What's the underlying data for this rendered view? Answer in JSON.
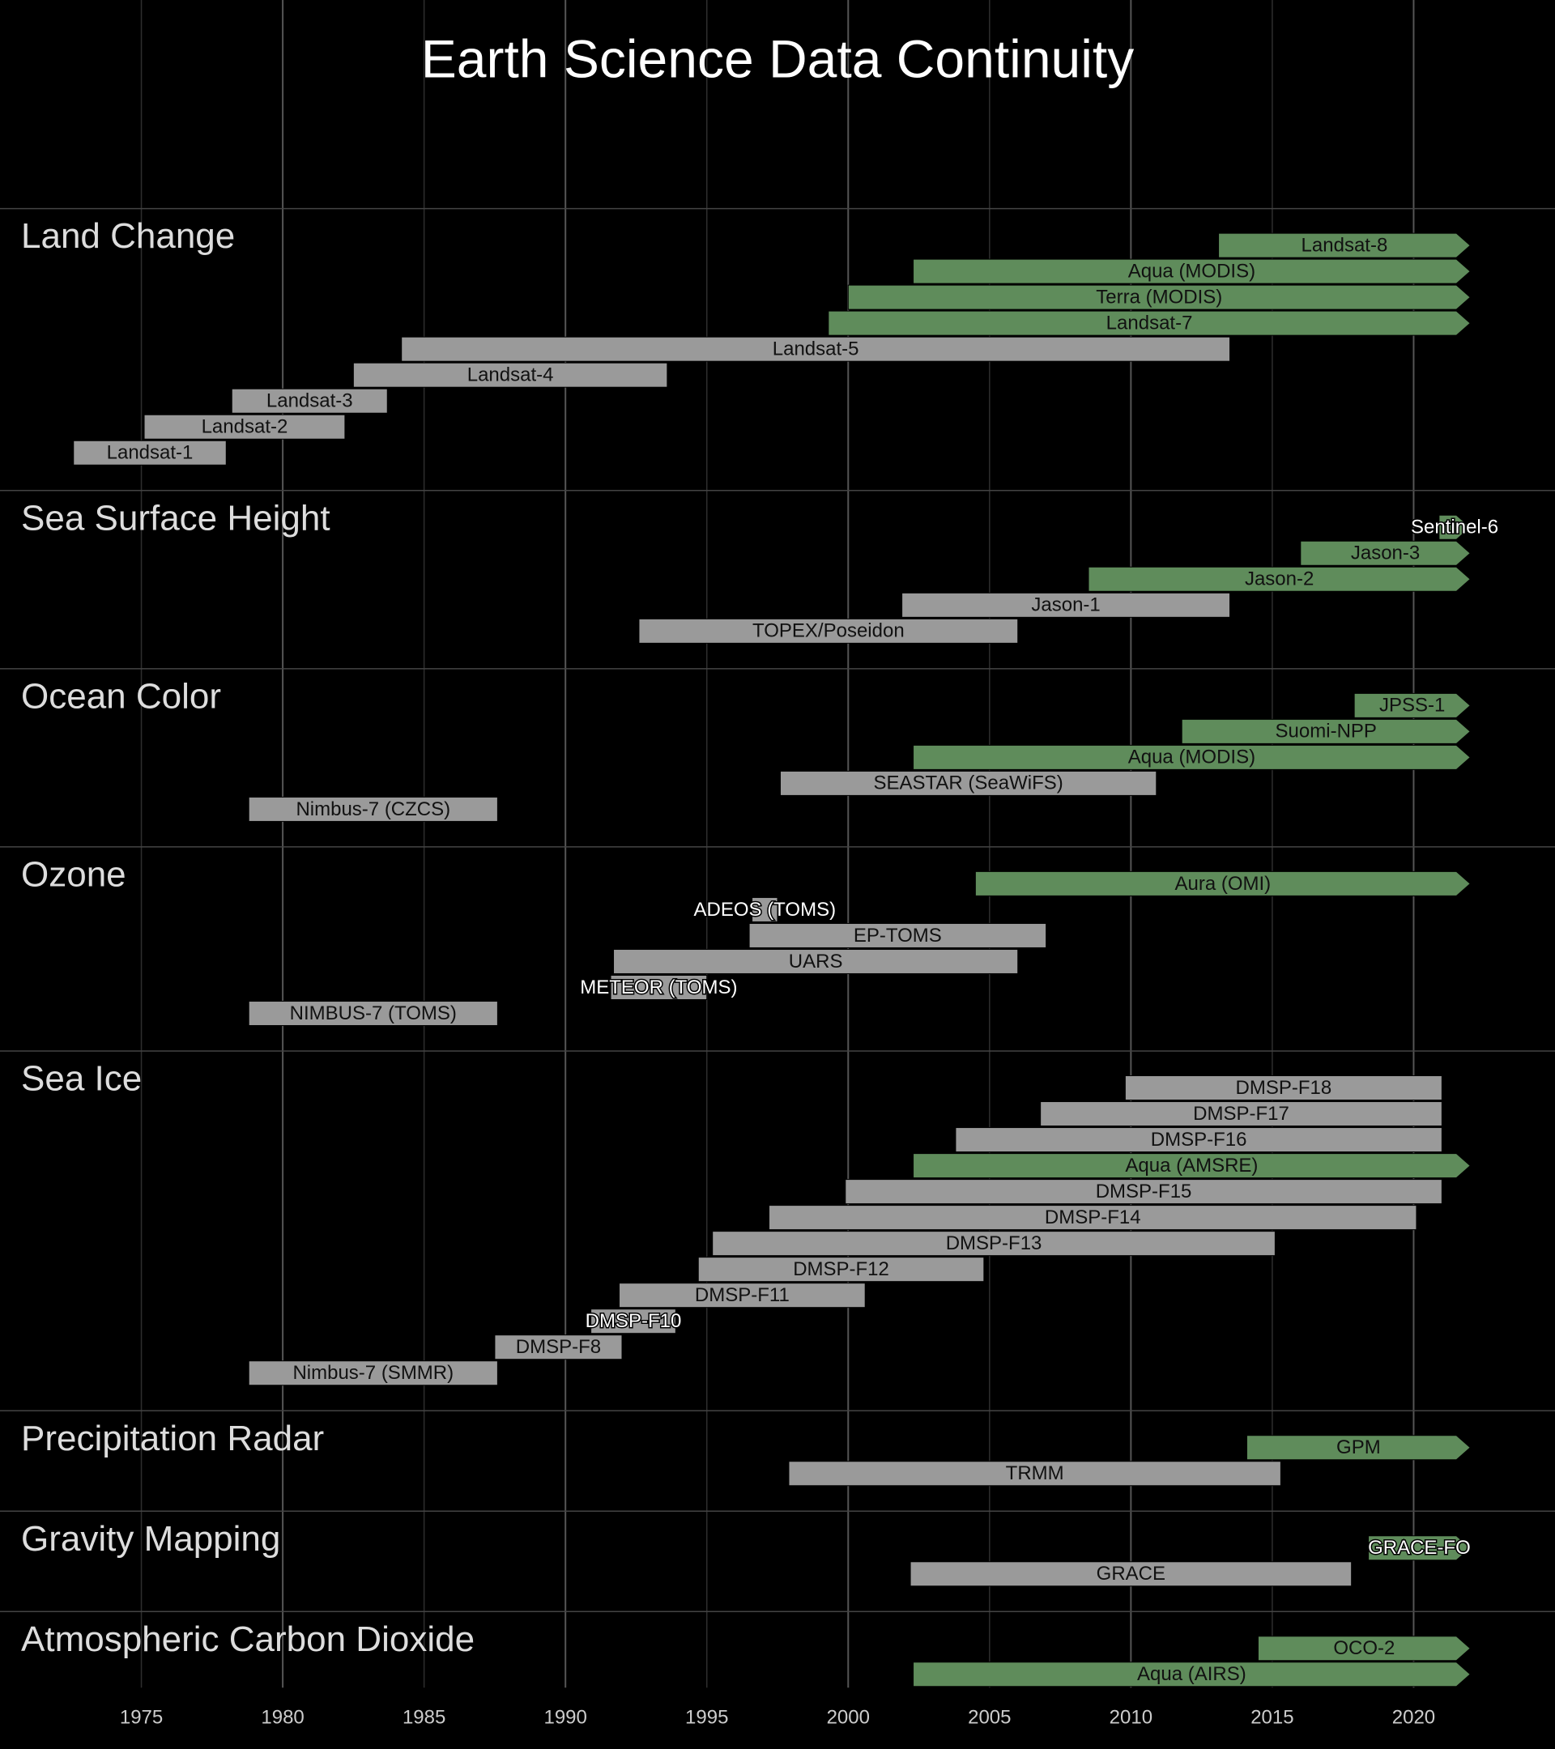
{
  "chart_data": {
    "type": "timeline",
    "title": "Earth Science Data Continuity",
    "xlim": [
      1970,
      2025
    ],
    "xticks": [
      1975,
      1980,
      1985,
      1990,
      1995,
      2000,
      2005,
      2010,
      2015,
      2020
    ],
    "grid": true,
    "groups": [
      {
        "name": "Land Change",
        "items": [
          {
            "name": "Landsat-8",
            "start": 2013.1,
            "end": 2022,
            "ongoing": true,
            "color": "#5f8c5b"
          },
          {
            "name": "Aqua (MODIS)",
            "start": 2002.3,
            "end": 2022,
            "ongoing": true,
            "color": "#5f8c5b"
          },
          {
            "name": "Terra (MODIS)",
            "start": 2000.0,
            "end": 2022,
            "ongoing": true,
            "color": "#5f8c5b"
          },
          {
            "name": "Landsat-7",
            "start": 1999.3,
            "end": 2022,
            "ongoing": true,
            "color": "#5f8c5b"
          },
          {
            "name": "Landsat-5",
            "start": 1984.2,
            "end": 2013.5,
            "ongoing": false,
            "color": "#9a9a9a"
          },
          {
            "name": "Landsat-4",
            "start": 1982.5,
            "end": 1993.6,
            "ongoing": false,
            "color": "#9a9a9a"
          },
          {
            "name": "Landsat-3",
            "start": 1978.2,
            "end": 1983.7,
            "ongoing": false,
            "color": "#9a9a9a"
          },
          {
            "name": "Landsat-2",
            "start": 1975.1,
            "end": 1982.2,
            "ongoing": false,
            "color": "#9a9a9a"
          },
          {
            "name": "Landsat-1",
            "start": 1972.6,
            "end": 1978.0,
            "ongoing": false,
            "color": "#9a9a9a"
          }
        ]
      },
      {
        "name": "Sea Surface Height",
        "items": [
          {
            "name": "Sentinel-6",
            "start": 2020.9,
            "end": 2022,
            "ongoing": true,
            "color": "#5f8c5b"
          },
          {
            "name": "Jason-3",
            "start": 2016.0,
            "end": 2022,
            "ongoing": true,
            "color": "#5f8c5b"
          },
          {
            "name": "Jason-2",
            "start": 2008.5,
            "end": 2022,
            "ongoing": true,
            "color": "#5f8c5b"
          },
          {
            "name": "Jason-1",
            "start": 2001.9,
            "end": 2013.5,
            "ongoing": false,
            "color": "#9a9a9a"
          },
          {
            "name": "TOPEX/Poseidon",
            "start": 1992.6,
            "end": 2006.0,
            "ongoing": false,
            "color": "#9a9a9a"
          }
        ]
      },
      {
        "name": "Ocean Color",
        "items": [
          {
            "name": "JPSS-1",
            "start": 2017.9,
            "end": 2022,
            "ongoing": true,
            "color": "#5f8c5b"
          },
          {
            "name": "Suomi-NPP",
            "start": 2011.8,
            "end": 2022,
            "ongoing": true,
            "color": "#5f8c5b"
          },
          {
            "name": "Aqua (MODIS)",
            "start": 2002.3,
            "end": 2022,
            "ongoing": true,
            "color": "#5f8c5b"
          },
          {
            "name": "SEASTAR (SeaWiFS)",
            "start": 1997.6,
            "end": 2010.9,
            "ongoing": false,
            "color": "#9a9a9a"
          },
          {
            "name": "Nimbus-7 (CZCS)",
            "start": 1978.8,
            "end": 1987.6,
            "ongoing": false,
            "color": "#9a9a9a"
          }
        ]
      },
      {
        "name": "Ozone",
        "items": [
          {
            "name": "Aura (OMI)",
            "start": 2004.5,
            "end": 2022,
            "ongoing": true,
            "color": "#5f8c5b"
          },
          {
            "name": "ADEOS (TOMS)",
            "start": 1996.6,
            "end": 1997.5,
            "ongoing": false,
            "color": "#9a9a9a"
          },
          {
            "name": "EP-TOMS",
            "start": 1996.5,
            "end": 2007.0,
            "ongoing": false,
            "color": "#9a9a9a"
          },
          {
            "name": "UARS",
            "start": 1991.7,
            "end": 2006.0,
            "ongoing": false,
            "color": "#9a9a9a"
          },
          {
            "name": "METEOR (TOMS)",
            "start": 1991.6,
            "end": 1995.0,
            "ongoing": false,
            "color": "#9a9a9a"
          },
          {
            "name": "NIMBUS-7 (TOMS)",
            "start": 1978.8,
            "end": 1987.6,
            "ongoing": false,
            "color": "#9a9a9a"
          }
        ]
      },
      {
        "name": "Sea Ice",
        "items": [
          {
            "name": "DMSP-F18",
            "start": 2009.8,
            "end": 2021.0,
            "ongoing": false,
            "color": "#9a9a9a"
          },
          {
            "name": "DMSP-F17",
            "start": 2006.8,
            "end": 2021.0,
            "ongoing": false,
            "color": "#9a9a9a"
          },
          {
            "name": "DMSP-F16",
            "start": 2003.8,
            "end": 2021.0,
            "ongoing": false,
            "color": "#9a9a9a"
          },
          {
            "name": "Aqua (AMSRE)",
            "start": 2002.3,
            "end": 2022,
            "ongoing": true,
            "color": "#5f8c5b"
          },
          {
            "name": "DMSP-F15",
            "start": 1999.9,
            "end": 2021.0,
            "ongoing": false,
            "color": "#9a9a9a"
          },
          {
            "name": "DMSP-F14",
            "start": 1997.2,
            "end": 2020.1,
            "ongoing": false,
            "color": "#9a9a9a"
          },
          {
            "name": "DMSP-F13",
            "start": 1995.2,
            "end": 2015.1,
            "ongoing": false,
            "color": "#9a9a9a"
          },
          {
            "name": "DMSP-F12",
            "start": 1994.7,
            "end": 2004.8,
            "ongoing": false,
            "color": "#9a9a9a"
          },
          {
            "name": "DMSP-F11",
            "start": 1991.9,
            "end": 2000.6,
            "ongoing": false,
            "color": "#9a9a9a"
          },
          {
            "name": "DMSP-F10",
            "start": 1990.9,
            "end": 1993.9,
            "ongoing": false,
            "color": "#9a9a9a"
          },
          {
            "name": "DMSP-F8",
            "start": 1987.5,
            "end": 1992.0,
            "ongoing": false,
            "color": "#9a9a9a"
          },
          {
            "name": "Nimbus-7 (SMMR)",
            "start": 1978.8,
            "end": 1987.6,
            "ongoing": false,
            "color": "#9a9a9a"
          }
        ]
      },
      {
        "name": "Precipitation Radar",
        "items": [
          {
            "name": "GPM",
            "start": 2014.1,
            "end": 2022,
            "ongoing": true,
            "color": "#5f8c5b"
          },
          {
            "name": "TRMM",
            "start": 1997.9,
            "end": 2015.3,
            "ongoing": false,
            "color": "#9a9a9a"
          }
        ]
      },
      {
        "name": "Gravity Mapping",
        "items": [
          {
            "name": "GRACE-FO",
            "start": 2018.4,
            "end": 2022,
            "ongoing": true,
            "color": "#5f8c5b"
          },
          {
            "name": "GRACE",
            "start": 2002.2,
            "end": 2017.8,
            "ongoing": false,
            "color": "#9a9a9a"
          }
        ]
      },
      {
        "name": "Atmospheric Carbon Dioxide",
        "items": [
          {
            "name": "OCO-2",
            "start": 2014.5,
            "end": 2022,
            "ongoing": true,
            "color": "#5f8c5b"
          },
          {
            "name": "Aqua (AIRS)",
            "start": 2002.3,
            "end": 2022,
            "ongoing": true,
            "color": "#5f8c5b"
          }
        ]
      }
    ]
  }
}
